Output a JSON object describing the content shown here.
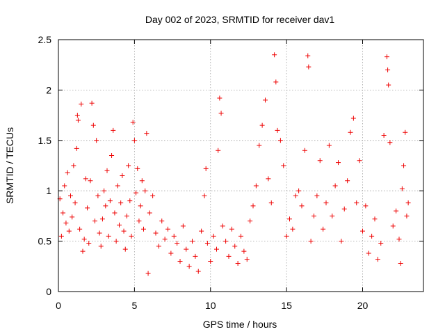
{
  "chart_data": {
    "type": "scatter",
    "title": "Day 002 of 2023, SRMTID for receiver dav1",
    "xlabel": "GPS time / hours",
    "ylabel": "SRMTID / TECUs",
    "xlim": [
      0,
      24
    ],
    "ylim": [
      0,
      2.5
    ],
    "xticks": [
      0,
      5,
      10,
      15,
      20
    ],
    "yticks": [
      0,
      0.5,
      1,
      1.5,
      2,
      2.5
    ],
    "xtick_labels": [
      "0",
      "5",
      "10",
      "15",
      "20"
    ],
    "ytick_labels": [
      "0",
      "0.5",
      "1",
      "1.5",
      "2",
      "2.5"
    ],
    "grid": true,
    "marker": "+",
    "color": "#ee0000",
    "series": [
      {
        "name": "SRMTID",
        "points": [
          [
            0.1,
            0.92
          ],
          [
            0.2,
            0.55
          ],
          [
            0.3,
            0.78
          ],
          [
            0.4,
            1.05
          ],
          [
            0.5,
            0.68
          ],
          [
            0.6,
            1.18
          ],
          [
            0.7,
            0.6
          ],
          [
            0.8,
            0.95
          ],
          [
            0.9,
            0.74
          ],
          [
            1.0,
            1.25
          ],
          [
            1.1,
            0.88
          ],
          [
            1.2,
            1.42
          ],
          [
            1.25,
            1.75
          ],
          [
            1.3,
            1.7
          ],
          [
            1.4,
            0.62
          ],
          [
            1.5,
            1.86
          ],
          [
            1.6,
            0.4
          ],
          [
            1.7,
            0.52
          ],
          [
            1.8,
            1.12
          ],
          [
            1.9,
            0.83
          ],
          [
            2.0,
            0.48
          ],
          [
            2.1,
            1.1
          ],
          [
            2.2,
            1.87
          ],
          [
            2.3,
            1.65
          ],
          [
            2.4,
            0.7
          ],
          [
            2.5,
            1.5
          ],
          [
            2.6,
            0.95
          ],
          [
            2.7,
            0.58
          ],
          [
            2.8,
            0.45
          ],
          [
            2.9,
            0.72
          ],
          [
            3.0,
            1.0
          ],
          [
            3.1,
            0.85
          ],
          [
            3.2,
            1.2
          ],
          [
            3.3,
            0.55
          ],
          [
            3.4,
            0.9
          ],
          [
            3.5,
            1.35
          ],
          [
            3.6,
            1.6
          ],
          [
            3.7,
            0.78
          ],
          [
            3.8,
            0.5
          ],
          [
            3.9,
            1.05
          ],
          [
            4.0,
            0.66
          ],
          [
            4.1,
            0.88
          ],
          [
            4.2,
            1.15
          ],
          [
            4.3,
            0.6
          ],
          [
            4.4,
            0.42
          ],
          [
            4.5,
            0.75
          ],
          [
            4.6,
            1.25
          ],
          [
            4.7,
            0.9
          ],
          [
            4.8,
            0.55
          ],
          [
            4.9,
            1.68
          ],
          [
            5.0,
            1.5
          ],
          [
            5.1,
            0.98
          ],
          [
            5.2,
            1.22
          ],
          [
            5.3,
            0.7
          ],
          [
            5.4,
            0.85
          ],
          [
            5.5,
            1.1
          ],
          [
            5.6,
            0.62
          ],
          [
            5.7,
            1.0
          ],
          [
            5.8,
            1.57
          ],
          [
            5.9,
            0.18
          ],
          [
            6.0,
            0.78
          ],
          [
            6.2,
            0.95
          ],
          [
            6.4,
            0.58
          ],
          [
            6.6,
            0.45
          ],
          [
            6.8,
            0.7
          ],
          [
            7.0,
            0.52
          ],
          [
            7.2,
            0.62
          ],
          [
            7.4,
            0.38
          ],
          [
            7.6,
            0.55
          ],
          [
            7.8,
            0.48
          ],
          [
            8.0,
            0.3
          ],
          [
            8.2,
            0.65
          ],
          [
            8.4,
            0.42
          ],
          [
            8.6,
            0.25
          ],
          [
            8.8,
            0.5
          ],
          [
            9.0,
            0.35
          ],
          [
            9.2,
            0.2
          ],
          [
            9.4,
            0.6
          ],
          [
            9.6,
            0.95
          ],
          [
            9.7,
            1.22
          ],
          [
            9.8,
            0.48
          ],
          [
            10.0,
            0.3
          ],
          [
            10.2,
            0.55
          ],
          [
            10.4,
            0.42
          ],
          [
            10.5,
            1.4
          ],
          [
            10.6,
            1.92
          ],
          [
            10.7,
            1.77
          ],
          [
            10.8,
            0.65
          ],
          [
            11.0,
            0.5
          ],
          [
            11.2,
            0.35
          ],
          [
            11.4,
            0.62
          ],
          [
            11.6,
            0.45
          ],
          [
            11.8,
            0.28
          ],
          [
            12.0,
            0.55
          ],
          [
            12.2,
            0.4
          ],
          [
            12.4,
            0.32
          ],
          [
            12.6,
            0.7
          ],
          [
            12.8,
            0.85
          ],
          [
            13.0,
            1.05
          ],
          [
            13.2,
            1.45
          ],
          [
            13.4,
            1.65
          ],
          [
            13.6,
            1.9
          ],
          [
            13.8,
            1.12
          ],
          [
            14.0,
            0.88
          ],
          [
            14.2,
            2.35
          ],
          [
            14.3,
            2.08
          ],
          [
            14.4,
            1.6
          ],
          [
            14.6,
            1.5
          ],
          [
            14.8,
            1.25
          ],
          [
            15.0,
            0.55
          ],
          [
            15.2,
            0.72
          ],
          [
            15.4,
            0.62
          ],
          [
            15.6,
            0.95
          ],
          [
            15.8,
            1.0
          ],
          [
            16.0,
            0.85
          ],
          [
            16.2,
            1.4
          ],
          [
            16.4,
            2.34
          ],
          [
            16.45,
            2.23
          ],
          [
            16.6,
            0.5
          ],
          [
            16.8,
            0.75
          ],
          [
            17.0,
            0.95
          ],
          [
            17.2,
            1.3
          ],
          [
            17.4,
            0.62
          ],
          [
            17.6,
            0.88
          ],
          [
            17.8,
            1.45
          ],
          [
            18.0,
            0.75
          ],
          [
            18.2,
            1.05
          ],
          [
            18.4,
            1.28
          ],
          [
            18.6,
            0.5
          ],
          [
            18.8,
            0.82
          ],
          [
            19.0,
            1.1
          ],
          [
            19.2,
            1.58
          ],
          [
            19.4,
            1.72
          ],
          [
            19.6,
            0.88
          ],
          [
            19.8,
            1.3
          ],
          [
            20.0,
            0.6
          ],
          [
            20.2,
            0.85
          ],
          [
            20.4,
            0.38
          ],
          [
            20.6,
            0.55
          ],
          [
            20.8,
            0.72
          ],
          [
            21.0,
            0.32
          ],
          [
            21.2,
            0.48
          ],
          [
            21.4,
            1.55
          ],
          [
            21.6,
            2.33
          ],
          [
            21.65,
            2.2
          ],
          [
            21.7,
            2.05
          ],
          [
            21.8,
            1.48
          ],
          [
            22.0,
            0.65
          ],
          [
            22.2,
            0.8
          ],
          [
            22.4,
            0.52
          ],
          [
            22.5,
            0.28
          ],
          [
            22.6,
            1.02
          ],
          [
            22.7,
            1.25
          ],
          [
            22.8,
            1.58
          ],
          [
            22.9,
            0.75
          ],
          [
            23.0,
            0.88
          ]
        ]
      }
    ]
  }
}
